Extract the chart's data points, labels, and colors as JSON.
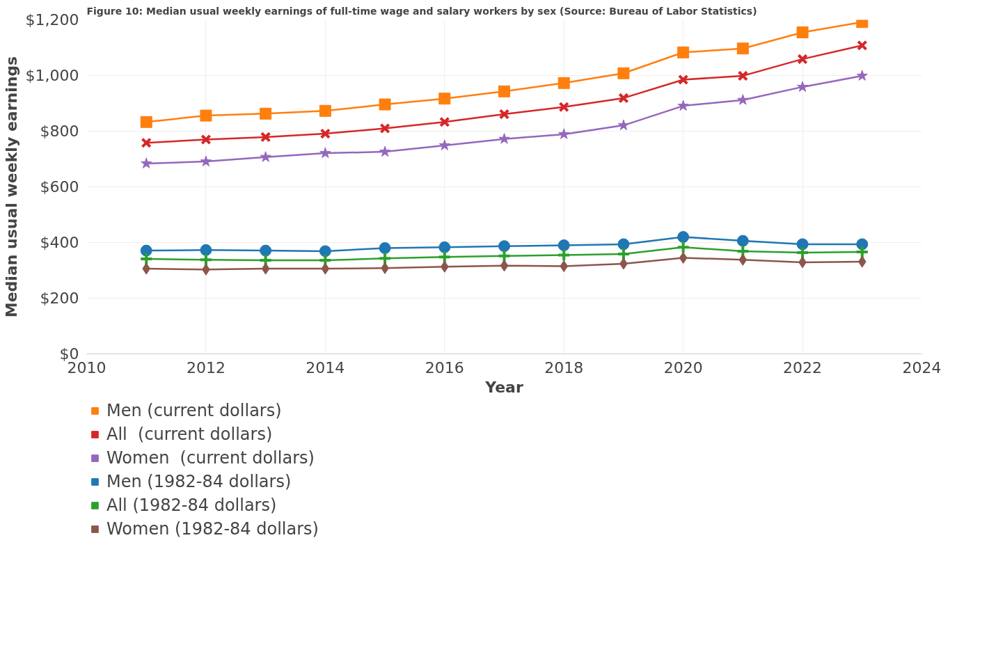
{
  "chart_data": {
    "type": "line",
    "title": "Figure 10: Median usual weekly earnings of full-time wage and salary workers by sex (Source: Bureau of Labor Statistics)",
    "xlabel": "Year",
    "ylabel": "Median usual weekly earnings",
    "x": [
      2011,
      2012,
      2013,
      2014,
      2015,
      2016,
      2017,
      2018,
      2019,
      2020,
      2021,
      2022,
      2023
    ],
    "xlim": [
      2010,
      2024
    ],
    "xticks": [
      2010,
      2012,
      2014,
      2016,
      2018,
      2020,
      2022,
      2024
    ],
    "ylim": [
      0,
      1200
    ],
    "yticks": [
      {
        "value": 0,
        "label": "$0"
      },
      {
        "value": 200,
        "label": "$200"
      },
      {
        "value": 400,
        "label": "$400"
      },
      {
        "value": 600,
        "label": "$600"
      },
      {
        "value": 800,
        "label": "$800"
      },
      {
        "value": 1000,
        "label": "$1,000"
      },
      {
        "value": 1200,
        "label": "$1,200"
      }
    ],
    "grid": true,
    "legend": "bottom",
    "line_style": "solid",
    "series": [
      {
        "name": "Men (current dollars)",
        "color": "#ff7f0e",
        "marker": "square",
        "values": [
          833,
          856,
          863,
          873,
          896,
          917,
          943,
          973,
          1008,
          1083,
          1097,
          1155,
          1192
        ]
      },
      {
        "name": "All  (current dollars)",
        "color": "#d62728",
        "marker": "x",
        "values": [
          758,
          770,
          779,
          791,
          810,
          833,
          861,
          887,
          919,
          985,
          999,
          1059,
          1108
        ]
      },
      {
        "name": "Women  (current dollars)",
        "color": "#9467bd",
        "marker": "star",
        "values": [
          684,
          691,
          707,
          721,
          726,
          749,
          772,
          789,
          821,
          891,
          912,
          959,
          999
        ]
      },
      {
        "name": "Men (1982-84 dollars)",
        "color": "#1f77b4",
        "marker": "circle",
        "values": [
          371,
          373,
          371,
          369,
          380,
          383,
          387,
          390,
          394,
          420,
          406,
          394,
          394
        ]
      },
      {
        "name": "All (1982-84 dollars)",
        "color": "#2ca02c",
        "marker": "cross",
        "values": [
          341,
          338,
          336,
          336,
          343,
          348,
          352,
          355,
          359,
          383,
          369,
          364,
          366
        ]
      },
      {
        "name": "Women (1982-84 dollars)",
        "color": "#8c564b",
        "marker": "diamond",
        "values": [
          306,
          303,
          306,
          306,
          308,
          313,
          317,
          315,
          324,
          345,
          338,
          329,
          331
        ]
      }
    ]
  }
}
